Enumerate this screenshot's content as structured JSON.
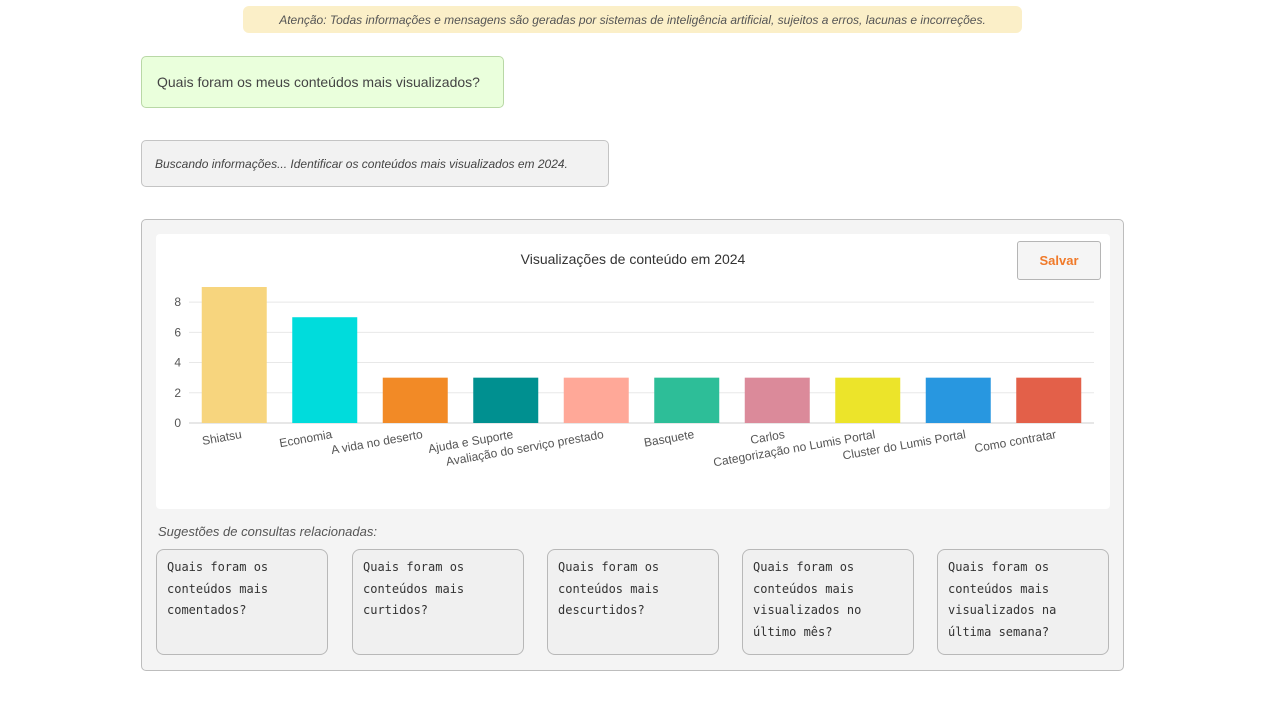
{
  "notice": {
    "text": "Atenção: Todas informações e mensagens são geradas por sistemas de inteligência artificial, sujeitos a erros, lacunas e incorreções."
  },
  "user_message": {
    "text": "Quais foram os meus conteúdos mais visualizados?"
  },
  "status_message": {
    "text": "Buscando informações... Identificar os conteúdos mais visualizados em 2024."
  },
  "save_button": {
    "label": "Salvar",
    "color": "#f07a2a"
  },
  "suggestions": {
    "title": "Sugestões de consultas relacionadas:",
    "items": [
      {
        "label": "Quais foram os conteúdos mais comentados?"
      },
      {
        "label": "Quais foram os conteúdos mais curtidos?"
      },
      {
        "label": "Quais foram os conteúdos mais descurtidos?"
      },
      {
        "label": "Quais foram os conteúdos mais visualizados no último mês?"
      },
      {
        "label": "Quais foram os conteúdos mais visualizados na última semana?"
      }
    ]
  },
  "chart_data": {
    "type": "bar",
    "title": "Visualizações de conteúdo em 2024",
    "categories": [
      "Shiatsu",
      "Economia",
      "A vida no deserto",
      "Ajuda e Suporte",
      "Avaliação do serviço prestado",
      "Basquete",
      "Carlos",
      "Categorização no Lumis Portal",
      "Cluster do Lumis Portal",
      "Como contratar"
    ],
    "values": [
      9,
      7,
      3,
      3,
      3,
      3,
      3,
      3,
      3,
      3
    ],
    "colors": [
      "#f7d57e",
      "#00dcdc",
      "#f28a26",
      "#009090",
      "#ffa898",
      "#2dbe98",
      "#db8a9a",
      "#ece42a",
      "#2897e0",
      "#e36049"
    ],
    "yticks": [
      0,
      2,
      4,
      6,
      8
    ],
    "ylim": [
      0,
      9
    ],
    "grid": true,
    "legend": "none"
  }
}
